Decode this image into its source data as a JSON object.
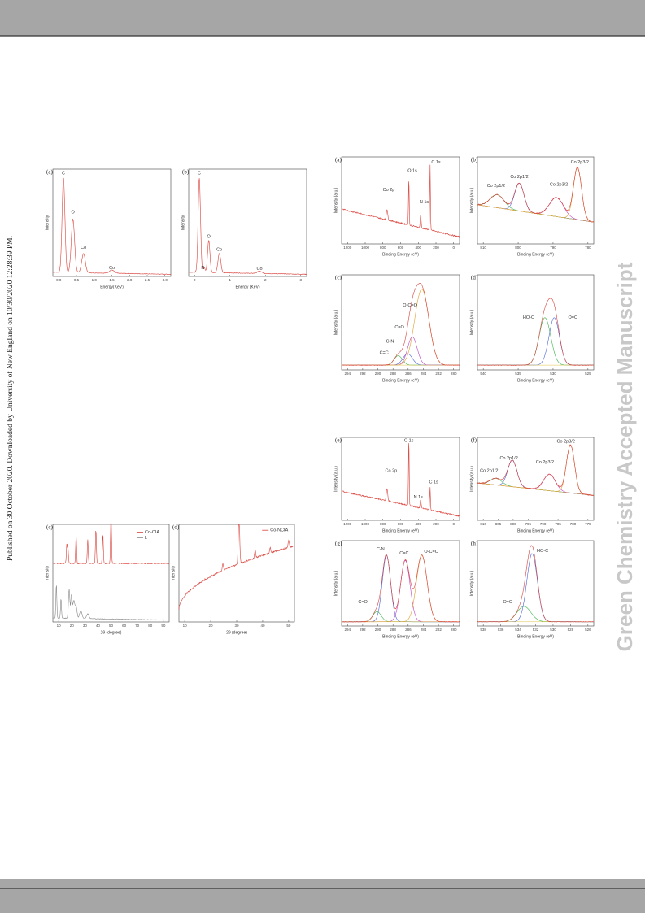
{
  "side_note": "Published on 30 October 2020. Downloaded by University of New England on 10/30/2020 12:28:39 PM.",
  "watermark": "Green Chemistry Accepted Manuscript",
  "figures": [
    {
      "label": "(a)",
      "ylabel": "Intensity",
      "xlabel": "Energy(KeV)",
      "xticks": [
        "0.0",
        "0.5",
        "1.0",
        "1.5",
        "2.0",
        "2.5",
        "3.0"
      ],
      "peaks": [
        "C",
        "O",
        "Co",
        "Co"
      ]
    },
    {
      "label": "(b)",
      "ylabel": "Intensity",
      "xlabel": "Energy (KeV)",
      "xticks": [
        "0",
        "1",
        "2",
        "3"
      ],
      "peaks": [
        "C",
        "N",
        "O",
        "Co",
        "Co"
      ]
    },
    {
      "label": "(c)",
      "ylabel": "Intensity",
      "xlabel": "2θ (degree)",
      "xticks": [
        "10",
        "20",
        "30",
        "40",
        "50",
        "60",
        "70",
        "80",
        "90"
      ],
      "peaks": [],
      "legend": [
        "Co-CIA",
        "L"
      ]
    },
    {
      "label": "(d)",
      "ylabel": "Intensity",
      "xlabel": "2θ (degree)",
      "xticks": [
        "10",
        "20",
        "30",
        "40",
        "50"
      ],
      "peaks": [],
      "legend": [
        "Co-NCIA"
      ]
    },
    {
      "label": "(a)",
      "ylabel": "Intensity (a.u.)",
      "xlabel": "Binding Energy (eV)",
      "xticks": [
        "1200",
        "1000",
        "800",
        "600",
        "400",
        "200",
        "0"
      ],
      "peaks": [
        "Co 2p",
        "O 1s",
        "N 1s",
        "C 1s"
      ]
    },
    {
      "label": "(b)",
      "ylabel": "Intensity (a.u.)",
      "xlabel": "Binding Energy (eV)",
      "xticks": [
        "810",
        "800",
        "790",
        "780"
      ],
      "peaks": [
        "Co 2p1/2",
        "Co 2p1/2",
        "Co 2p3/2",
        "Co 2p3/2"
      ]
    },
    {
      "label": "(c)",
      "ylabel": "Intensity (a.u.)",
      "xlabel": "Binding Energy (eV)",
      "xticks": [
        "294",
        "292",
        "290",
        "288",
        "286",
        "284",
        "282",
        "280"
      ],
      "peaks": [
        "C=C",
        "C-N",
        "C=O",
        "O-C=O"
      ]
    },
    {
      "label": "(d)",
      "ylabel": "Intensity (a.u.)",
      "xlabel": "Binding Energy (eV)",
      "xticks": [
        "540",
        "535",
        "530",
        "525"
      ],
      "peaks": [
        "HO-C",
        "O=C"
      ]
    },
    {
      "label": "(e)",
      "ylabel": "Intensity (a.u.)",
      "xlabel": "Binding Energy (eV)",
      "xticks": [
        "1200",
        "1000",
        "800",
        "600",
        "400",
        "200",
        "0"
      ],
      "peaks": [
        "O 1s",
        "Co 2p",
        "N 1s",
        "C 1s"
      ]
    },
    {
      "label": "(f)",
      "ylabel": "Intensity (a.u.)",
      "xlabel": "Binding Energy (eV)",
      "xticks": [
        "810",
        "805",
        "800",
        "795",
        "790",
        "785",
        "780",
        "775"
      ],
      "peaks": [
        "Co 2p1/2",
        "Co 2p1/2",
        "Co 2p3/2",
        "Co 2p3/2"
      ]
    },
    {
      "label": "(g)",
      "ylabel": "Intensity (a.u.)",
      "xlabel": "Binding Energy (eV)",
      "xticks": [
        "294",
        "292",
        "290",
        "288",
        "286",
        "284",
        "282",
        "280"
      ],
      "peaks": [
        "C=O",
        "C-N",
        "C=C",
        "O-C=O"
      ]
    },
    {
      "label": "(h)",
      "ylabel": "Intensity (a.u.)",
      "xlabel": "Binding Energy (eV)",
      "xticks": [
        "538",
        "536",
        "534",
        "532",
        "530",
        "528",
        "526"
      ],
      "peaks": [
        "O=C",
        "HO-C"
      ]
    }
  ]
}
